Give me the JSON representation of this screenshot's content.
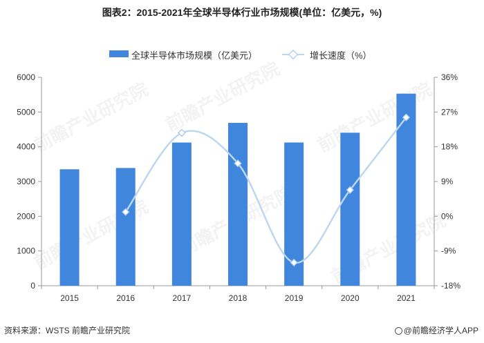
{
  "title": "图表2：2015-2021年全球半导体行业市场规模(单位：亿美元，%)",
  "legend": {
    "bar_label": "全球半导体市场规模（亿美元）",
    "line_label": "增长速度（%）"
  },
  "source": "资料来源：WSTS 前瞻产业研究院",
  "brand": "@前瞻经济学人APP",
  "watermark": "前瞻产业研究院",
  "chart_data": {
    "type": "bar+line",
    "categories": [
      "2015",
      "2016",
      "2017",
      "2018",
      "2019",
      "2020",
      "2021"
    ],
    "series": [
      {
        "name": "全球半导体市场规模（亿美元）",
        "type": "bar",
        "axis": "left",
        "values": [
          3352,
          3389,
          4122,
          4688,
          4123,
          4404,
          5529
        ]
      },
      {
        "name": "增长速度（%）",
        "type": "line",
        "axis": "right",
        "values": [
          null,
          1.1,
          21.6,
          13.7,
          -12.0,
          6.8,
          25.6
        ]
      }
    ],
    "y_left": {
      "min": 0,
      "max": 6000,
      "ticks": [
        0,
        1000,
        2000,
        3000,
        4000,
        5000,
        6000
      ]
    },
    "y_right": {
      "min": -18,
      "max": 36,
      "ticks": [
        "-18%",
        "-9%",
        "0%",
        "9%",
        "18%",
        "27%",
        "36%"
      ],
      "tick_values": [
        -18,
        -9,
        0,
        9,
        18,
        27,
        36
      ]
    },
    "colors": {
      "bar": "#3f86dc",
      "line": "#bcd7ef",
      "marker_edge": "#9ec3e6",
      "axis": "#999999"
    }
  }
}
